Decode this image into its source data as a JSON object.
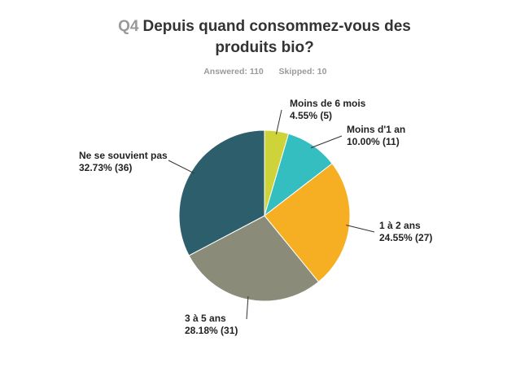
{
  "question": {
    "number": "Q4",
    "title_line1": "Depuis quand consommez-vous des",
    "title_line2": "produits bio?"
  },
  "stats": {
    "answered": "Answered: 110",
    "skipped": "Skipped: 10"
  },
  "chart_data": {
    "type": "pie",
    "slices": [
      {
        "label": "Moins de 6 mois",
        "percent": 4.55,
        "count": 5,
        "value_text": "4.55% (5)",
        "color": "#cfd33a"
      },
      {
        "label": "Moins d'1 an",
        "percent": 10.0,
        "count": 11,
        "value_text": "10.00% (11)",
        "color": "#35bec0"
      },
      {
        "label": "1 à 2 ans",
        "percent": 24.55,
        "count": 27,
        "value_text": "24.55% (27)",
        "color": "#f6ae22"
      },
      {
        "label": "3 à 5 ans",
        "percent": 28.18,
        "count": 31,
        "value_text": "28.18% (31)",
        "color": "#8a8b78"
      },
      {
        "label": "Ne se souvient pas",
        "percent": 32.73,
        "count": 36,
        "value_text": "32.73% (36)",
        "color": "#2d5e6c"
      }
    ]
  }
}
